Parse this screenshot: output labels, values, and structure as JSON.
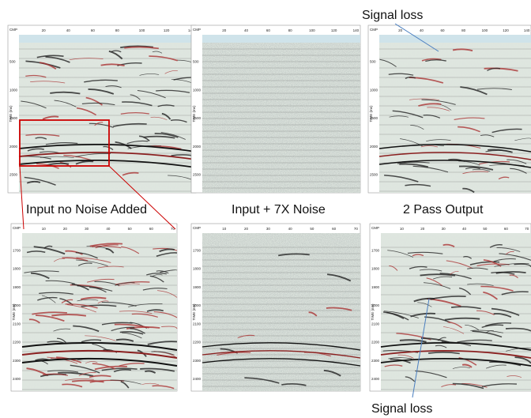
{
  "annotations": {
    "top": "Signal loss",
    "bottom": "Signal loss"
  },
  "captions": [
    "Input no Noise Added",
    "Input + 7X Noise",
    "2 Pass Output"
  ],
  "top_axes": {
    "x_label": "CMP",
    "y_label": "TIME (ms)",
    "xticks": [
      "20",
      "40",
      "60",
      "80",
      "100",
      "120",
      "140"
    ],
    "yticks": [
      "500",
      "1000",
      "1500",
      "2000",
      "2500"
    ]
  },
  "bottom_axes": {
    "x_label": "CMP",
    "y_label": "TIME (ms)",
    "xticks": [
      "10",
      "20",
      "30",
      "40",
      "50",
      "60",
      "70"
    ],
    "yticks": [
      "1700",
      "1800",
      "1900",
      "2000",
      "2100",
      "2200",
      "2300",
      "2400"
    ]
  }
}
